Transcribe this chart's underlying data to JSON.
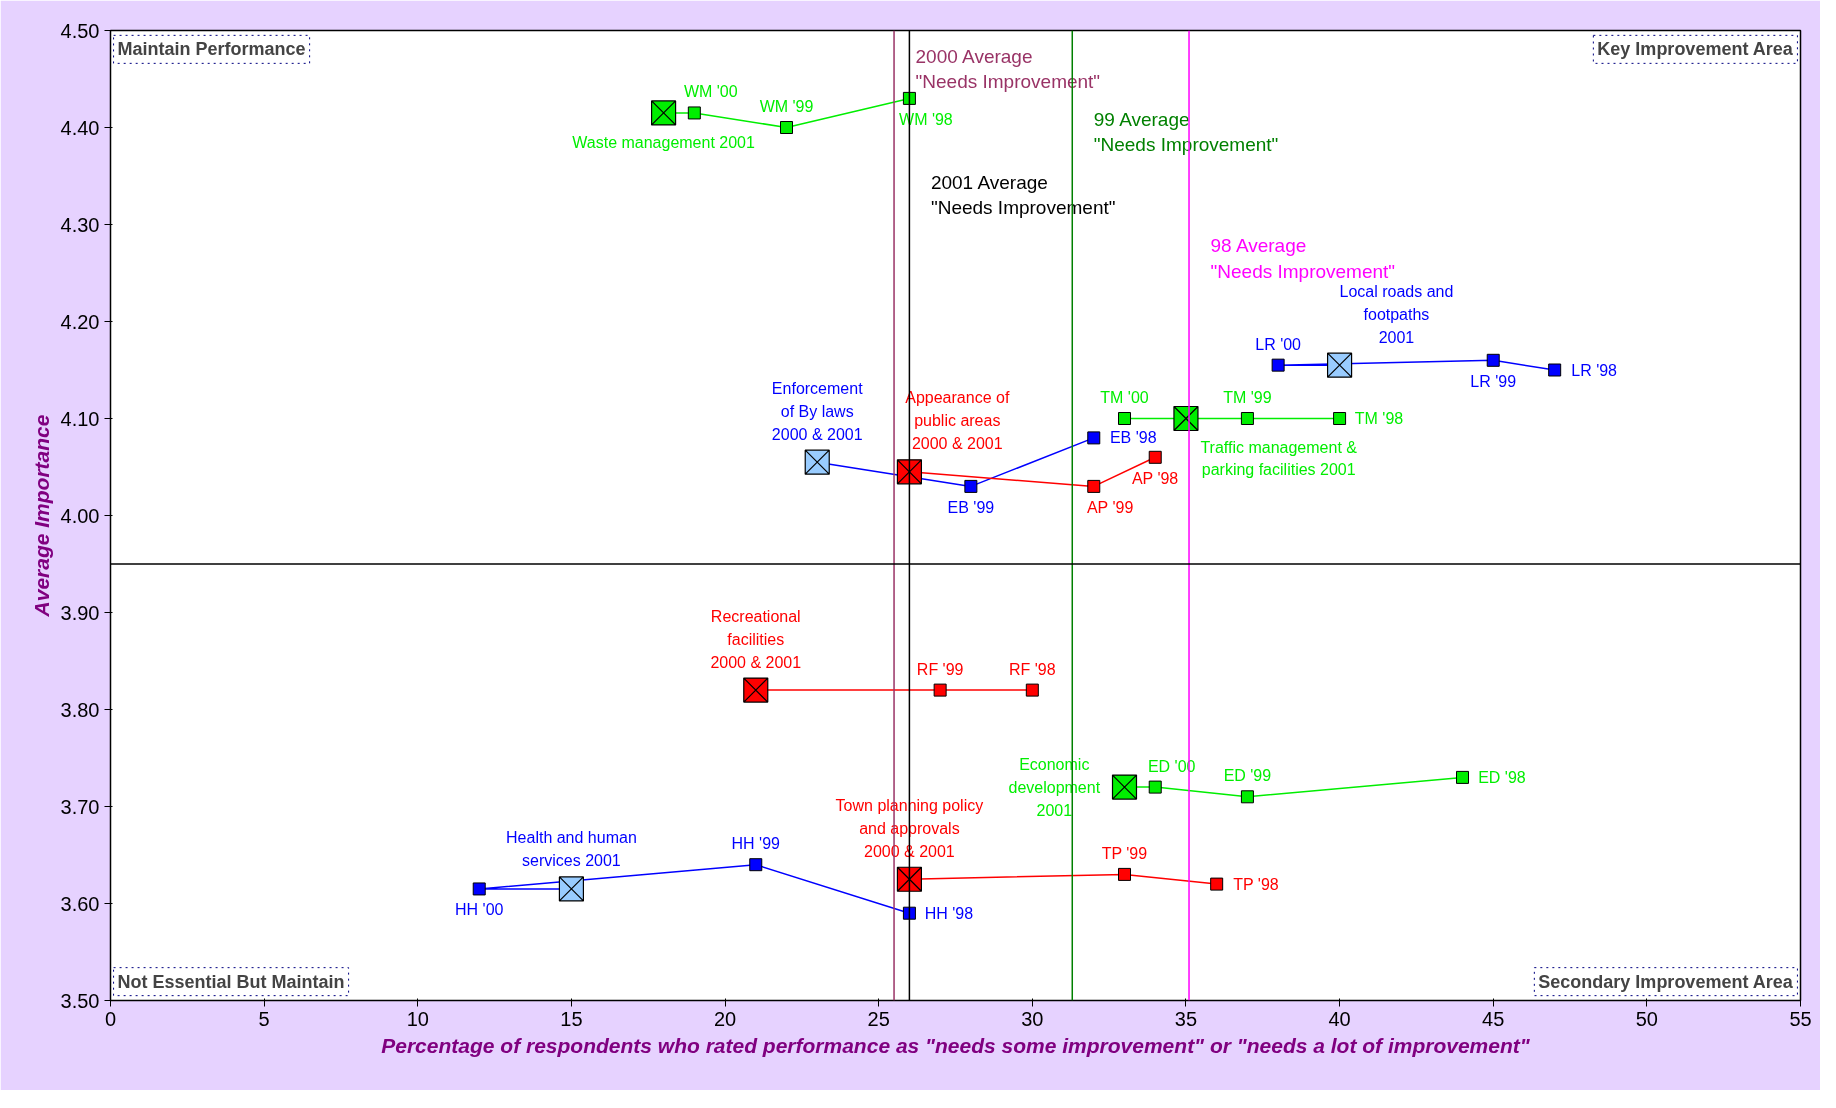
{
  "chart_data": {
    "type": "line",
    "xlabel": "Percentage of respondents who rated performance as \"needs some improvement\" or \"needs a lot of improvement\"",
    "ylabel": "Average Importance",
    "xlim": [
      0,
      55
    ],
    "xticks": [
      0,
      5,
      10,
      15,
      20,
      25,
      30,
      35,
      40,
      45,
      50,
      55
    ],
    "ylim": [
      3.5,
      4.5
    ],
    "yticks": [
      {
        "value": 3.5,
        "label": "3.50"
      },
      {
        "value": 3.6,
        "label": "3.60"
      },
      {
        "value": 3.7,
        "label": "3.70"
      },
      {
        "value": 3.8,
        "label": "3.80"
      },
      {
        "value": 3.9,
        "label": "3.90"
      },
      {
        "value": 4.0,
        "label": "4.00"
      },
      {
        "value": 4.1,
        "label": "4.10"
      },
      {
        "value": 4.2,
        "label": "4.20"
      },
      {
        "value": 4.3,
        "label": "4.30"
      },
      {
        "value": 4.4,
        "label": "4.40"
      },
      {
        "value": 4.5,
        "label": "4.50"
      }
    ],
    "grid": false,
    "marker": "square",
    "line_style": "solid",
    "series": [
      {
        "color": "#00ee00",
        "x": [
          26,
          22,
          19,
          18
        ],
        "values": [
          4.43,
          4.4,
          4.415,
          4.415
        ]
      },
      {
        "color": "#0000ff",
        "x": [
          47,
          45,
          38,
          40
        ],
        "values": [
          4.15,
          4.16,
          4.155,
          4.155
        ]
      },
      {
        "color": "#00ee00",
        "x": [
          40,
          37,
          33,
          35
        ],
        "values": [
          4.1,
          4.1,
          4.1,
          4.1
        ]
      },
      {
        "color": "#0000ff",
        "x": [
          32,
          28,
          23
        ],
        "values": [
          4.08,
          4.03,
          4.055
        ]
      },
      {
        "color": "#ff0000",
        "x": [
          34,
          32,
          26
        ],
        "values": [
          4.06,
          4.03,
          4.045
        ]
      },
      {
        "color": "#ff0000",
        "x": [
          30,
          27,
          21
        ],
        "values": [
          3.82,
          3.82,
          3.82
        ]
      },
      {
        "color": "#00ee00",
        "x": [
          44,
          37,
          34,
          33
        ],
        "values": [
          3.73,
          3.71,
          3.72,
          3.72
        ]
      },
      {
        "color": "#ff0000",
        "x": [
          36,
          33,
          26
        ],
        "values": [
          3.62,
          3.63,
          3.625
        ]
      },
      {
        "color": "#0000ff",
        "x": [
          26,
          21,
          12,
          15
        ],
        "values": [
          3.59,
          3.64,
          3.615,
          3.615
        ]
      },
      {
        "type": "scatter",
        "marker": "square",
        "x": [
          18,
          40,
          35,
          23,
          26,
          21,
          33,
          26,
          15
        ],
        "values": [
          4.415,
          4.155,
          4.1,
          4.055,
          4.045,
          3.82,
          3.72,
          3.625,
          3.615
        ],
        "colors": [
          "#00ee00",
          "#99ccff",
          "#00ee00",
          "#99ccff",
          "#ff0000",
          "#ff0000",
          "#00ee00",
          "#ff0000",
          "#99ccff"
        ]
      }
    ],
    "ref_lines": [
      {
        "axis": "x",
        "value": 25.5,
        "label": "2000 Average\n\"Needs Improvement\"",
        "color": "#993366"
      },
      {
        "axis": "x",
        "value": 31.3,
        "label": "99 Average\n\"Needs Improvement\"",
        "color": "#008000"
      },
      {
        "axis": "x",
        "value": 26,
        "label": "2001 Average\n\"Needs Improvement\"",
        "color": "#000000"
      },
      {
        "axis": "x",
        "value": 35.1,
        "label": "98 Average\n\"Needs Improvement\"",
        "color": "#ff00ff"
      },
      {
        "axis": "y",
        "value": 3.95,
        "color": "#000000"
      }
    ],
    "annotations": [
      "Maintain Performance",
      "Key Improvement Area",
      "Not Essential But Maintain",
      "Secondary Improvement Area",
      {
        "text": "WM '00",
        "x": 19,
        "y": 4.415
      },
      {
        "text": "Waste management 2001",
        "x": 18,
        "y": 4.415
      },
      {
        "text": "WM '99",
        "x": 22,
        "y": 4.4
      },
      {
        "text": "WM '98",
        "x": 26,
        "y": 4.43
      },
      {
        "text": "LR '00",
        "x": 38,
        "y": 4.155
      },
      {
        "text": "Local roads and\nfootpaths\n2001",
        "x": 40,
        "y": 4.155
      },
      {
        "text": "LR '99",
        "x": 45,
        "y": 4.16
      },
      {
        "text": "LR '98",
        "x": 47,
        "y": 4.15
      },
      {
        "text": "TM '00",
        "x": 33,
        "y": 4.1
      },
      {
        "text": "TM '99",
        "x": 37,
        "y": 4.1
      },
      {
        "text": "TM '98",
        "x": 40,
        "y": 4.1
      },
      {
        "text": "Traffic management &\nparking facilities 2001",
        "x": 35,
        "y": 4.1
      },
      {
        "text": "Enforcement\nof By laws\n2000 & 2001",
        "x": 23,
        "y": 4.055
      },
      {
        "text": "EB '98",
        "x": 32,
        "y": 4.08
      },
      {
        "text": "EB '99",
        "x": 28,
        "y": 4.03
      },
      {
        "text": "Appearance of\npublic areas\n2000 & 2001",
        "x": 26,
        "y": 4.045
      },
      {
        "text": "AP '98",
        "x": 34,
        "y": 4.06
      },
      {
        "text": "AP '99",
        "x": 32,
        "y": 4.03
      },
      {
        "text": "Recreational\nfacilities\n2000 & 2001",
        "x": 21,
        "y": 3.82
      },
      {
        "text": "RF '99",
        "x": 27,
        "y": 3.82
      },
      {
        "text": "RF '98",
        "x": 30,
        "y": 3.82
      },
      {
        "text": "ED '00",
        "x": 34,
        "y": 3.72
      },
      {
        "text": "Economic\ndevelopment\n2001",
        "x": 33,
        "y": 3.72
      },
      {
        "text": "ED '98",
        "x": 44,
        "y": 3.73
      },
      {
        "text": "ED '99",
        "x": 37,
        "y": 3.71
      },
      {
        "text": "Town planning policy\nand approvals\n2000 & 2001",
        "x": 26,
        "y": 3.625
      },
      {
        "text": "TP '99",
        "x": 33,
        "y": 3.63
      },
      {
        "text": "TP '98",
        "x": 36,
        "y": 3.62
      },
      {
        "text": "Health and human\nservices 2001",
        "x": 15,
        "y": 3.615
      },
      {
        "text": "HH '99",
        "x": 21,
        "y": 3.64
      },
      {
        "text": "HH '00",
        "x": 12,
        "y": 3.615
      },
      {
        "text": "HH '98",
        "x": 26,
        "y": 3.59
      }
    ]
  }
}
